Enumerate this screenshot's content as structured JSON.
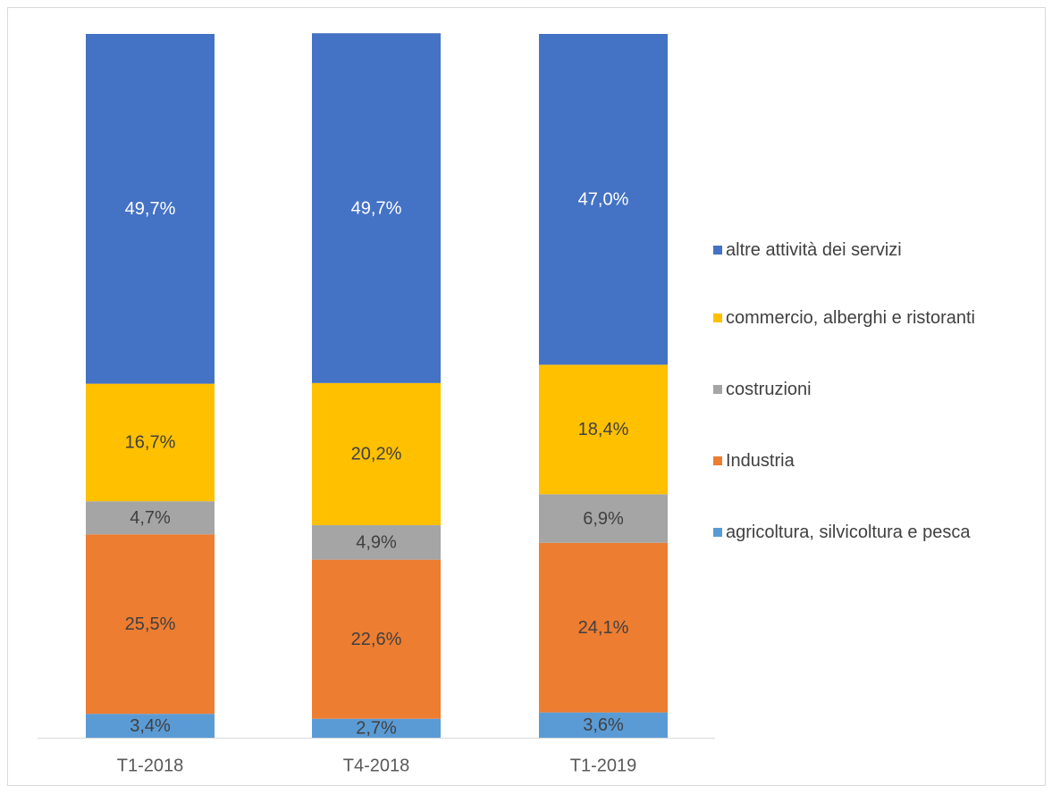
{
  "chart_data": {
    "type": "stacked_bar",
    "categories": [
      "T1-2018",
      "T4-2018",
      "T1-2019"
    ],
    "ylim": [
      0,
      100
    ],
    "series": [
      {
        "name": "agricoltura, silvicoltura e pesca",
        "color": "#5b9bd5",
        "label_color": "#404040",
        "values": [
          3.4,
          2.7,
          3.6
        ],
        "value_labels": [
          "3,4%",
          "2,7%",
          "3,6%"
        ]
      },
      {
        "name": "Industria",
        "color": "#ed7d31",
        "label_color": "#404040",
        "values": [
          25.5,
          22.6,
          24.1
        ],
        "value_labels": [
          "25,5%",
          "22,6%",
          "24,1%"
        ]
      },
      {
        "name": "costruzioni",
        "color": "#a5a5a5",
        "label_color": "#404040",
        "values": [
          4.7,
          4.9,
          6.9
        ],
        "value_labels": [
          "4,7%",
          "4,9%",
          "6,9%"
        ]
      },
      {
        "name": "commercio, alberghi e ristoranti",
        "color": "#ffc000",
        "label_color": "#404040",
        "values": [
          16.7,
          20.2,
          18.4
        ],
        "value_labels": [
          "16,7%",
          "20,2%",
          "18,4%"
        ]
      },
      {
        "name": "altre attività dei servizi",
        "color": "#4472c4",
        "label_color": "#ffffff",
        "values": [
          49.7,
          49.7,
          47.0
        ],
        "value_labels": [
          "49,7%",
          "49,7%",
          "47,0%"
        ]
      }
    ]
  }
}
